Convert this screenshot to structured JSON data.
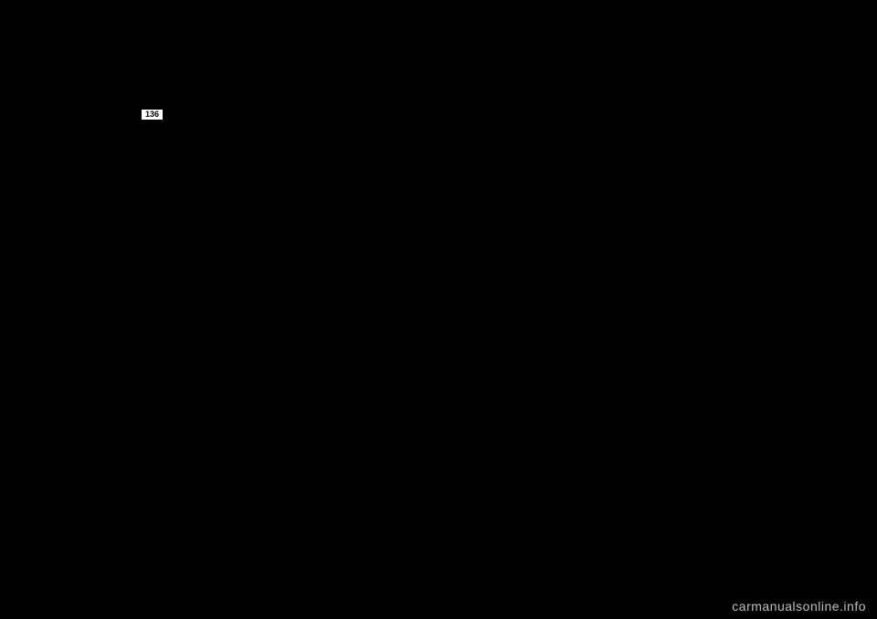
{
  "page": {
    "number": "136",
    "background_color": "#000000",
    "text_color": "#ffffff"
  },
  "link": {
    "text": "",
    "color": "#0000ff"
  },
  "watermark": {
    "text": "carmanualsonline.info",
    "color": "#c0c0c0"
  }
}
